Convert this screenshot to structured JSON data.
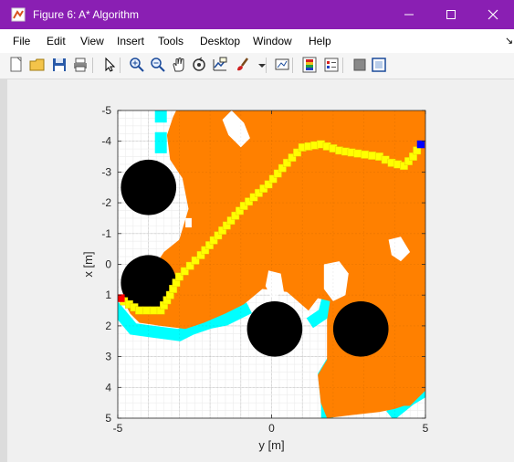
{
  "window": {
    "title": "Figure 6: A* Algorithm",
    "minimize_glyph": "—",
    "maximize_glyph": "☐",
    "close_glyph": "✕"
  },
  "menu": [
    "File",
    "Edit",
    "View",
    "Insert",
    "Tools",
    "Desktop",
    "Window",
    "Help"
  ],
  "menu_arrow": "↘",
  "toolbar_icons": [
    "new-figure-icon",
    "open-file-icon",
    "save-icon",
    "print-icon",
    "select-arrow-icon",
    "zoom-in-icon",
    "zoom-out-icon",
    "pan-hand-icon",
    "rotate-3d-icon",
    "data-cursor-icon",
    "brush-icon",
    "dropdown-arrow-icon",
    "link-plot-icon",
    "colorbar-icon",
    "legend-icon",
    "hide-plot-tools-icon",
    "show-plot-tools-icon"
  ],
  "colors": {
    "titlebar": "#8a1fb3",
    "explored": "#ff8000",
    "frontier": "#00ffff",
    "obstacle": "#000000",
    "path": "#ffff00",
    "start": "#ff0000",
    "goal": "#0000ff",
    "free": "#ffffff"
  },
  "chart_data": {
    "type": "heatmap",
    "title": "",
    "xlabel": "y [m]",
    "ylabel": "x [m]",
    "x_range": [
      -5,
      5
    ],
    "y_range": [
      -5,
      5
    ],
    "y_reversed": true,
    "grid": true,
    "x_ticks": [
      "-5",
      "0",
      "5"
    ],
    "y_ticks": [
      "-5",
      "-4",
      "-3",
      "-2",
      "-1",
      "0",
      "1",
      "2",
      "3",
      "4",
      "5"
    ],
    "obstacles": [
      {
        "center": [
          -4.0,
          -2.5
        ],
        "radius": 0.9
      },
      {
        "center": [
          -4.0,
          0.6
        ],
        "radius": 0.9
      },
      {
        "center": [
          0.1,
          2.1
        ],
        "radius": 0.9
      },
      {
        "center": [
          2.9,
          2.1
        ],
        "radius": 0.9
      }
    ],
    "start": [
      -4.9,
      1.1
    ],
    "goal": [
      4.85,
      -3.9
    ],
    "path": [
      [
        -4.8,
        1.2
      ],
      [
        -4.3,
        1.5
      ],
      [
        -3.6,
        1.5
      ],
      [
        -3.3,
        1.0
      ],
      [
        -3.0,
        0.4
      ],
      [
        -2.3,
        -0.3
      ],
      [
        -1.6,
        -1.1
      ],
      [
        -0.9,
        -1.9
      ],
      [
        -0.1,
        -2.6
      ],
      [
        0.5,
        -3.3
      ],
      [
        1.0,
        -3.8
      ],
      [
        1.6,
        -3.9
      ],
      [
        2.2,
        -3.7
      ],
      [
        2.8,
        -3.6
      ],
      [
        3.5,
        -3.5
      ],
      [
        3.9,
        -3.3
      ],
      [
        4.3,
        -3.2
      ],
      [
        4.6,
        -3.5
      ],
      [
        4.85,
        -3.9
      ]
    ],
    "explored_region": [
      [
        -3.1,
        -5.0
      ],
      [
        5.0,
        -5.0
      ],
      [
        5.0,
        4.1
      ],
      [
        4.5,
        4.6
      ],
      [
        4.3,
        4.6
      ],
      [
        4.0,
        4.7
      ],
      [
        3.5,
        4.8
      ],
      [
        2.6,
        4.9
      ],
      [
        1.8,
        5.0
      ],
      [
        1.6,
        4.5
      ],
      [
        1.5,
        3.6
      ],
      [
        1.8,
        3.1
      ],
      [
        1.8,
        1.8
      ],
      [
        1.9,
        1.2
      ],
      [
        1.5,
        1.1
      ],
      [
        1.2,
        1.5
      ],
      [
        0.5,
        0.9
      ],
      [
        -0.3,
        0.8
      ],
      [
        -0.9,
        1.3
      ],
      [
        -1.5,
        1.6
      ],
      [
        -2.2,
        1.9
      ],
      [
        -2.8,
        2.1
      ],
      [
        -3.6,
        2.0
      ],
      [
        -4.3,
        1.9
      ],
      [
        -4.6,
        1.6
      ],
      [
        -4.8,
        1.2
      ],
      [
        -4.6,
        0.3
      ],
      [
        -3.9,
        0.2
      ],
      [
        -3.5,
        -0.4
      ],
      [
        -3.0,
        -0.8
      ],
      [
        -2.7,
        -1.8
      ],
      [
        -2.9,
        -2.8
      ],
      [
        -3.3,
        -3.4
      ],
      [
        -3.4,
        -4.2
      ],
      [
        -3.2,
        -4.8
      ]
    ],
    "free_islands": [
      [
        [
          -1.3,
          -5.0
        ],
        [
          -0.9,
          -4.6
        ],
        [
          -0.7,
          -4.1
        ],
        [
          -1.0,
          -3.8
        ],
        [
          -1.4,
          -4.2
        ],
        [
          -1.6,
          -4.7
        ]
      ],
      [
        [
          3.8,
          -0.8
        ],
        [
          4.2,
          -0.9
        ],
        [
          4.5,
          -0.4
        ],
        [
          4.2,
          -0.1
        ],
        [
          3.9,
          -0.3
        ]
      ],
      [
        [
          1.7,
          0.0
        ],
        [
          2.2,
          -0.1
        ],
        [
          2.5,
          0.3
        ],
        [
          2.4,
          1.0
        ],
        [
          2.0,
          1.2
        ],
        [
          1.7,
          0.8
        ]
      ],
      [
        [
          -0.1,
          0.2
        ],
        [
          0.3,
          0.3
        ],
        [
          0.4,
          0.9
        ],
        [
          0.0,
          1.1
        ],
        [
          -0.2,
          0.7
        ]
      ],
      [
        [
          -2.8,
          -1.5
        ],
        [
          -2.6,
          -1.5
        ],
        [
          -2.6,
          -1.2
        ],
        [
          -2.8,
          -1.2
        ]
      ]
    ],
    "frontier_bands": [
      [
        [
          -5.0,
          1.5
        ],
        [
          -4.5,
          2.1
        ],
        [
          -3.8,
          2.2
        ],
        [
          -3.0,
          2.3
        ],
        [
          -2.6,
          2.1
        ],
        [
          -2.0,
          1.9
        ],
        [
          -1.5,
          1.8
        ],
        [
          -0.9,
          1.5
        ]
      ],
      [
        [
          1.8,
          1.2
        ],
        [
          1.7,
          1.6
        ],
        [
          1.4,
          1.8
        ]
      ],
      [
        [
          2.0,
          3.1
        ],
        [
          1.7,
          3.6
        ],
        [
          1.8,
          4.6
        ],
        [
          1.8,
          5.0
        ]
      ],
      [
        [
          5.0,
          4.1
        ],
        [
          4.5,
          4.4
        ],
        [
          4.0,
          4.8
        ]
      ],
      [
        [
          -3.6,
          -5.0
        ],
        [
          -3.6,
          -4.8
        ]
      ],
      [
        [
          -3.6,
          -4.1
        ],
        [
          -3.6,
          -3.8
        ]
      ]
    ]
  }
}
